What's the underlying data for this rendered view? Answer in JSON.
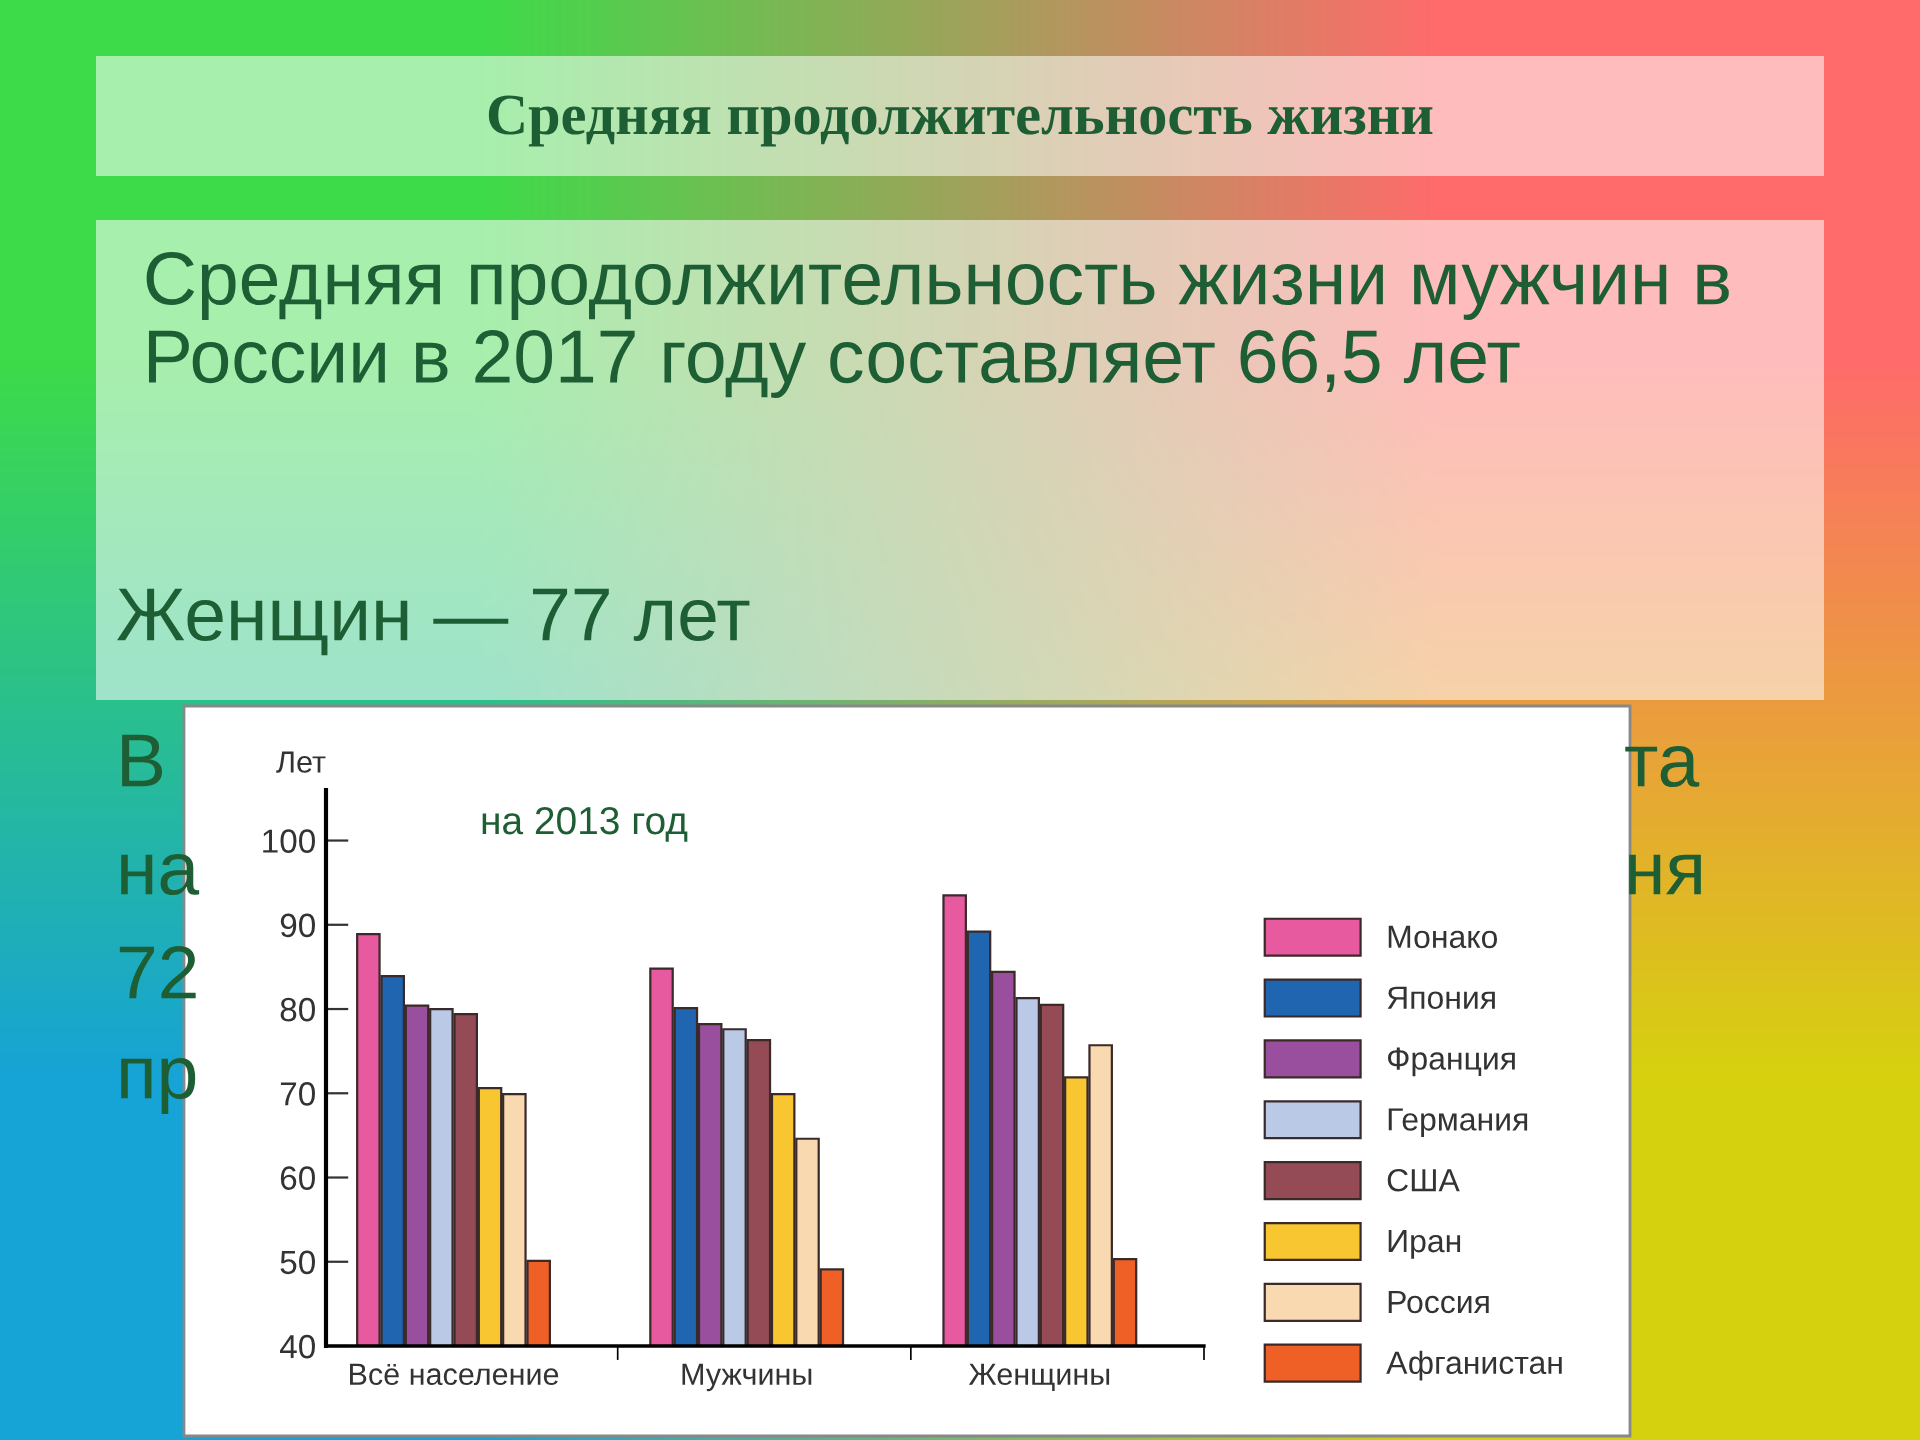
{
  "chart_data": {
    "type": "bar",
    "title": "Средняя продолжительность жизни",
    "subtitle": "на 2013 год",
    "ylabel": "Лет",
    "annotations": [
      "Средняя продолжительность жизни мужчин в России в 2017 году составляет 66,5 лет",
      "Женщин — 77 лет",
      "В",
      "та",
      "на",
      "ня",
      "72",
      "пр"
    ],
    "categories": [
      "Всё население",
      "Мужчины",
      "Женщины"
    ],
    "series": [
      {
        "name": "Монако",
        "color": "#e85a9f",
        "values": [
          88.9,
          84.8,
          93.5
        ]
      },
      {
        "name": "Япония",
        "color": "#1f65b0",
        "values": [
          83.9,
          80.1,
          89.2
        ]
      },
      {
        "name": "Франция",
        "color": "#9a4f9e",
        "values": [
          80.4,
          78.2,
          84.4
        ]
      },
      {
        "name": "Германия",
        "color": "#b9c9e6",
        "values": [
          80.0,
          77.6,
          81.3
        ]
      },
      {
        "name": "США",
        "color": "#944b55",
        "values": [
          79.4,
          76.3,
          80.5
        ]
      },
      {
        "name": "Иран",
        "color": "#f7c630",
        "values": [
          70.6,
          69.9,
          71.9
        ]
      },
      {
        "name": "Россия",
        "color": "#f9d9b0",
        "values": [
          69.9,
          64.6,
          75.7
        ]
      },
      {
        "name": "Афганистан",
        "color": "#ef6026",
        "values": [
          50.1,
          49.1,
          50.3
        ]
      }
    ],
    "ylim": [
      40,
      106
    ],
    "yticks": [
      40,
      50,
      60,
      70,
      80,
      90,
      100
    ],
    "grid": false,
    "legend": "right"
  }
}
